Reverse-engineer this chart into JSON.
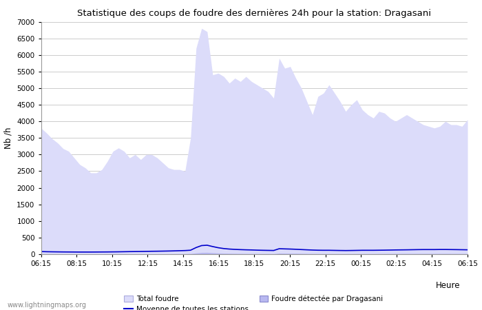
{
  "title": "Statistique des coups de foudre des dernières 24h pour la station: Dragasani",
  "ylabel": "Nb /h",
  "xlabel": "Heure",
  "xlim_labels": [
    "06:15",
    "08:15",
    "10:15",
    "12:15",
    "14:15",
    "16:15",
    "18:15",
    "20:15",
    "22:15",
    "00:15",
    "02:15",
    "04:15",
    "06:15"
  ],
  "ylim": [
    0,
    7000
  ],
  "yticks": [
    0,
    500,
    1000,
    1500,
    2000,
    2500,
    3000,
    3500,
    4000,
    4500,
    5000,
    5500,
    6000,
    6500,
    7000
  ],
  "fill_color_total": "#dcdcfa",
  "fill_color_station": "#b8b8f0",
  "line_color_avg": "#0000cc",
  "bg_color": "#ffffff",
  "watermark": "www.lightningmaps.org",
  "legend": {
    "total_foudre": "Total foudre",
    "moyenne": "Moyenne de toutes les stations",
    "station": "Foudre détectée par Dragasani"
  },
  "total_foudre": [
    3800,
    3650,
    3480,
    3350,
    3180,
    3100,
    2900,
    2700,
    2600,
    2450,
    2450,
    2550,
    2800,
    3100,
    3200,
    3100,
    2900,
    3000,
    2850,
    3000,
    3000,
    2900,
    2750,
    2600,
    2550,
    2550,
    2500,
    3500,
    6200,
    6800,
    6700,
    5400,
    5450,
    5350,
    5150,
    5300,
    5200,
    5350,
    5200,
    5100,
    5000,
    4900,
    4700,
    5900,
    5600,
    5650,
    5300,
    5000,
    4600,
    4200,
    4750,
    4850,
    5100,
    4850,
    4600,
    4300,
    4500,
    4650,
    4350,
    4200,
    4100,
    4300,
    4250,
    4100,
    4000,
    4100,
    4200,
    4100,
    4000,
    3900,
    3850,
    3800,
    3850,
    4000,
    3900,
    3900,
    3850,
    4050
  ],
  "moyenne": [
    80,
    75,
    72,
    70,
    68,
    67,
    66,
    65,
    65,
    65,
    66,
    67,
    68,
    70,
    72,
    75,
    78,
    80,
    82,
    85,
    88,
    90,
    93,
    96,
    100,
    105,
    110,
    120,
    200,
    260,
    270,
    230,
    195,
    170,
    155,
    145,
    138,
    132,
    128,
    122,
    118,
    115,
    112,
    165,
    160,
    155,
    148,
    140,
    132,
    125,
    120,
    118,
    118,
    115,
    112,
    110,
    112,
    115,
    118,
    118,
    118,
    120,
    122,
    125,
    128,
    130,
    132,
    135,
    138,
    140,
    140,
    140,
    142,
    142,
    140,
    138,
    135,
    132
  ],
  "station_foudre": [
    15,
    14,
    13,
    12,
    10,
    10,
    9,
    8,
    8,
    8,
    9,
    10,
    11,
    13,
    14,
    13,
    12,
    12,
    11,
    10,
    10,
    9,
    9,
    10,
    11,
    12,
    13,
    18,
    38,
    52,
    55,
    45,
    36,
    30,
    26,
    23,
    21,
    19,
    17,
    16,
    15,
    15,
    13,
    32,
    30,
    28,
    26,
    23,
    20,
    18,
    16,
    15,
    15,
    14,
    13,
    13,
    14,
    15,
    15,
    15,
    15,
    17,
    18,
    19,
    20,
    20,
    21,
    21,
    21,
    21,
    21,
    21,
    21,
    21,
    20,
    20,
    19,
    19
  ]
}
